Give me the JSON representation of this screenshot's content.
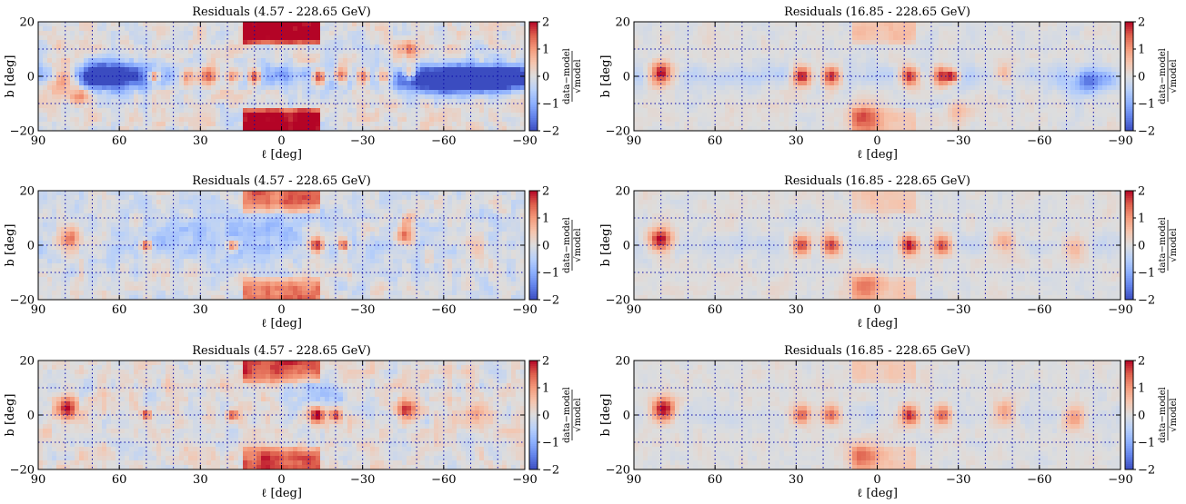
{
  "chart_data": [
    {
      "type": "heatmap",
      "title": "Residuals (4.57 - 228.65 GeV)",
      "xlabel": "ℓ [deg]",
      "ylabel": "b [deg]",
      "xlim": [
        90,
        -90
      ],
      "ylim": [
        -20,
        20
      ],
      "xticks": [
        "90",
        "60",
        "30",
        "0",
        "−30",
        "−60",
        "−90"
      ],
      "yticks": [
        "20",
        "0",
        "−20"
      ],
      "colorbar": {
        "label_num": "data−model",
        "label_den": "√model",
        "range": [
          -2,
          2
        ],
        "ticks": [
          "2",
          "1",
          "0",
          "−1",
          "−2"
        ]
      },
      "grid": true,
      "features": {
        "seed": 11,
        "background": 0.0,
        "noise": 0.55,
        "disk_amp": -0.9,
        "disk_width": 6,
        "bulge_amp": 2.2,
        "bulge_lmin": -15,
        "bulge_lmax": 15,
        "bulge_bmin": 11,
        "sources": [
          [
            80,
            0,
            2.2,
            4
          ],
          [
            47,
            0,
            2.3,
            1.5
          ],
          [
            35,
            0,
            2.0,
            2.5
          ],
          [
            27,
            0,
            2.3,
            2.5
          ],
          [
            18,
            0,
            2.3,
            2
          ],
          [
            10,
            0,
            2.3,
            2
          ],
          [
            -14,
            0,
            2.3,
            2
          ],
          [
            -22,
            0,
            2.2,
            2
          ],
          [
            -30,
            0,
            2.0,
            2
          ],
          [
            -38,
            0,
            2.1,
            2
          ],
          [
            -48,
            1,
            2.0,
            2
          ],
          [
            75,
            -7,
            1.2,
            2.5
          ],
          [
            -47,
            10,
            1.3,
            2.5
          ]
        ],
        "patches": [
          [
            -65,
            -1,
            -2.0,
            12,
            3
          ],
          [
            -80,
            -1,
            -2.5,
            10,
            3
          ],
          [
            65,
            0,
            -1.8,
            10,
            4
          ],
          [
            -55,
            -2,
            -1.3,
            8,
            3
          ]
        ]
      }
    },
    {
      "type": "heatmap",
      "title": "Residuals (16.85 - 228.65 GeV)",
      "xlabel": "ℓ [deg]",
      "ylabel": "b [deg]",
      "xlim": [
        90,
        -90
      ],
      "ylim": [
        -20,
        20
      ],
      "xticks": [
        "90",
        "60",
        "30",
        "0",
        "−30",
        "−60",
        "−90"
      ],
      "yticks": [
        "20",
        "0",
        "−20"
      ],
      "colorbar": {
        "label_num": "data−model",
        "label_den": "√model",
        "range": [
          -2,
          2
        ],
        "ticks": [
          "2",
          "1",
          "0",
          "−1",
          "−2"
        ]
      },
      "grid": true,
      "features": {
        "seed": 21,
        "background": 0.0,
        "noise": 0.22,
        "disk_amp": -0.35,
        "disk_width": 6,
        "bulge_amp": 0.5,
        "bulge_lmin": -15,
        "bulge_lmax": 10,
        "bulge_bmin": 11,
        "sources": [
          [
            80,
            1,
            2.4,
            3
          ],
          [
            28,
            0,
            2.3,
            2.5
          ],
          [
            17,
            0,
            2.3,
            2.5
          ],
          [
            -12,
            0,
            2.3,
            2.5
          ],
          [
            -24,
            0,
            2.3,
            2.5
          ],
          [
            -28,
            0,
            1.8,
            1.5
          ],
          [
            5,
            -15,
            1.2,
            4
          ],
          [
            -30,
            -14,
            0.6,
            3
          ],
          [
            -47,
            1,
            0.8,
            2.5
          ],
          [
            -73,
            0,
            0.6,
            2.5
          ]
        ],
        "patches": [
          [
            -78,
            -2,
            -1.3,
            6,
            3
          ]
        ]
      }
    },
    {
      "type": "heatmap",
      "title": "Residuals (4.57 - 228.65 GeV)",
      "xlabel": "ℓ [deg]",
      "ylabel": "b [deg]",
      "xlim": [
        90,
        -90
      ],
      "ylim": [
        -20,
        20
      ],
      "xticks": [
        "90",
        "60",
        "30",
        "0",
        "−30",
        "−60",
        "−90"
      ],
      "yticks": [
        "20",
        "0",
        "−20"
      ],
      "colorbar": {
        "label_num": "data−model",
        "label_den": "√model",
        "range": [
          -2,
          2
        ],
        "ticks": [
          "2",
          "1",
          "0",
          "−1",
          "−2"
        ]
      },
      "grid": true,
      "features": {
        "seed": 31,
        "background": -0.1,
        "noise": 0.5,
        "disk_amp": -0.2,
        "disk_width": 6,
        "bulge_amp": 1.4,
        "bulge_lmin": -15,
        "bulge_lmax": 15,
        "bulge_bmin": 12,
        "sources": [
          [
            78,
            2,
            1.6,
            3
          ],
          [
            50,
            0,
            1.9,
            1.3
          ],
          [
            18,
            0,
            1.8,
            1.5
          ],
          [
            -13,
            0,
            2.2,
            2
          ],
          [
            -23,
            0,
            2.0,
            1.5
          ],
          [
            -46,
            3,
            1.6,
            2.5
          ],
          [
            -72,
            0,
            1.0,
            3
          ],
          [
            -47,
            10,
            1.0,
            2
          ]
        ],
        "patches": [
          [
            20,
            5,
            -0.6,
            20,
            6
          ]
        ]
      }
    },
    {
      "type": "heatmap",
      "title": "Residuals (16.85 - 228.65 GeV)",
      "xlabel": "ℓ [deg]",
      "ylabel": "b [deg]",
      "xlim": [
        90,
        -90
      ],
      "ylim": [
        -20,
        20
      ],
      "xticks": [
        "90",
        "60",
        "30",
        "0",
        "−30",
        "−60",
        "−90"
      ],
      "yticks": [
        "20",
        "0",
        "−20"
      ],
      "colorbar": {
        "label_num": "data−model",
        "label_den": "√model",
        "range": [
          -2,
          2
        ],
        "ticks": [
          "2",
          "1",
          "0",
          "−1",
          "−2"
        ]
      },
      "grid": true,
      "features": {
        "seed": 41,
        "background": 0.0,
        "noise": 0.2,
        "disk_amp": -0.2,
        "disk_width": 6,
        "bulge_amp": 0.4,
        "bulge_lmin": -15,
        "bulge_lmax": 10,
        "bulge_bmin": 11,
        "sources": [
          [
            80,
            2,
            2.2,
            3
          ],
          [
            28,
            0,
            1.9,
            2.5
          ],
          [
            17,
            0,
            1.9,
            2.5
          ],
          [
            -12,
            0,
            2.2,
            2.5
          ],
          [
            -24,
            0,
            1.9,
            2.5
          ],
          [
            -47,
            1,
            1.0,
            3
          ],
          [
            -73,
            -1,
            0.8,
            3
          ],
          [
            5,
            -15,
            1.0,
            4
          ]
        ],
        "patches": []
      }
    },
    {
      "type": "heatmap",
      "title": "Residuals (4.57 - 228.65 GeV)",
      "xlabel": "ℓ [deg]",
      "ylabel": "b [deg]",
      "xlim": [
        90,
        -90
      ],
      "ylim": [
        -20,
        20
      ],
      "xticks": [
        "90",
        "60",
        "30",
        "0",
        "−30",
        "−60",
        "−90"
      ],
      "yticks": [
        "20",
        "0",
        "−20"
      ],
      "colorbar": {
        "label_num": "data−model",
        "label_den": "√model",
        "range": [
          -2,
          2
        ],
        "ticks": [
          "2",
          "1",
          "0",
          "−1",
          "−2"
        ]
      },
      "grid": true,
      "features": {
        "seed": 51,
        "background": 0.05,
        "noise": 0.5,
        "disk_amp": 0.0,
        "disk_width": 6,
        "bulge_amp": 1.5,
        "bulge_lmin": -15,
        "bulge_lmax": 15,
        "bulge_bmin": 12,
        "sources": [
          [
            79,
            2,
            1.8,
            3
          ],
          [
            50,
            0,
            2.0,
            1.2
          ],
          [
            18,
            0,
            1.8,
            1.5
          ],
          [
            -13,
            0,
            2.2,
            2
          ],
          [
            -20,
            0,
            1.5,
            1.5
          ],
          [
            -46,
            2,
            1.6,
            2.5
          ],
          [
            -72,
            0,
            1.0,
            3
          ]
        ],
        "patches": [
          [
            -15,
            8,
            -0.8,
            8,
            4
          ]
        ]
      }
    },
    {
      "type": "heatmap",
      "title": "Residuals (16.85 - 228.65 GeV)",
      "xlabel": "ℓ [deg]",
      "ylabel": "b [deg]",
      "xlim": [
        90,
        -90
      ],
      "ylim": [
        -20,
        20
      ],
      "xticks": [
        "90",
        "60",
        "30",
        "0",
        "−30",
        "−60",
        "−90"
      ],
      "yticks": [
        "20",
        "0",
        "−20"
      ],
      "colorbar": {
        "label_num": "data−model",
        "label_den": "√model",
        "range": [
          -2,
          2
        ],
        "ticks": [
          "2",
          "1",
          "0",
          "−1",
          "−2"
        ]
      },
      "grid": true,
      "features": {
        "seed": 61,
        "background": 0.0,
        "noise": 0.2,
        "disk_amp": -0.15,
        "disk_width": 6,
        "bulge_amp": 0.4,
        "bulge_lmin": -15,
        "bulge_lmax": 10,
        "bulge_bmin": 11,
        "sources": [
          [
            79,
            2,
            2.2,
            3
          ],
          [
            28,
            0,
            1.6,
            2.5
          ],
          [
            17,
            0,
            1.6,
            2.5
          ],
          [
            -12,
            0,
            2.0,
            2.5
          ],
          [
            -24,
            0,
            1.6,
            2.5
          ],
          [
            -47,
            1,
            1.0,
            3
          ],
          [
            -73,
            -1,
            1.0,
            3
          ],
          [
            5,
            -15,
            1.0,
            4
          ]
        ],
        "patches": []
      }
    }
  ]
}
